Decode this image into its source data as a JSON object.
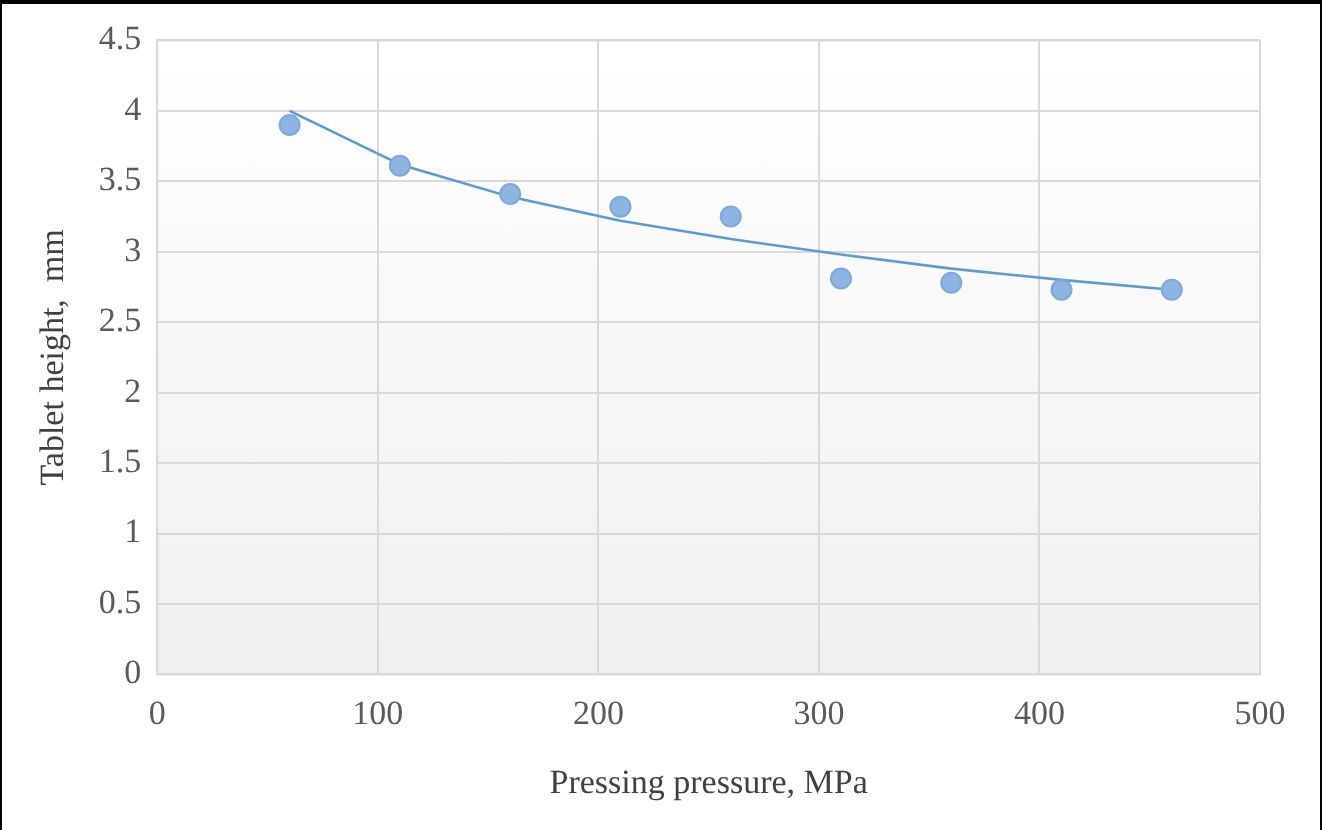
{
  "chart_data": {
    "type": "scatter",
    "xlabel": "Pressing pressure, MPa",
    "ylabel": "Tablet height,  mm",
    "xlim": [
      0,
      500
    ],
    "xticks": [
      0,
      100,
      200,
      300,
      400,
      500
    ],
    "ylim": [
      0,
      4.5
    ],
    "yticks": [
      0,
      0.5,
      1,
      1.5,
      2,
      2.5,
      3,
      3.5,
      4,
      4.5
    ],
    "grid": true,
    "legend": false,
    "marker": "circle",
    "series": [
      {
        "type": "scatter",
        "color": "#8eb4e3",
        "x": [
          60,
          110,
          160,
          210,
          260,
          310,
          360,
          410,
          460
        ],
        "values": [
          3.9,
          3.61,
          3.41,
          3.32,
          3.25,
          2.81,
          2.78,
          2.73,
          2.73
        ]
      },
      {
        "type": "line",
        "color": "#5b9bd5",
        "marker": "none",
        "line_style": "solid",
        "x": [
          60,
          110,
          160,
          210,
          260,
          310,
          360,
          410,
          460
        ],
        "values": [
          4.0,
          3.62,
          3.39,
          3.22,
          3.09,
          2.98,
          2.88,
          2.8,
          2.73
        ]
      }
    ]
  }
}
